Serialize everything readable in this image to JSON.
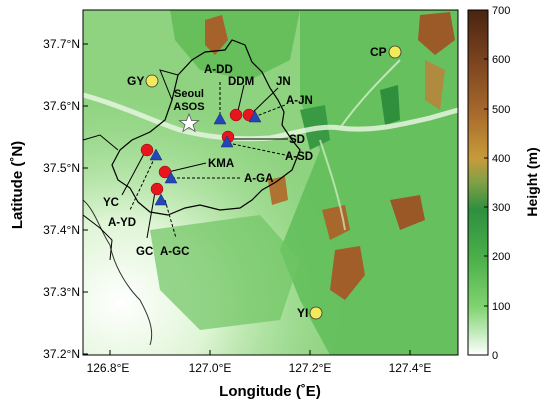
{
  "axes": {
    "xlabel": "Longitude (˚E)",
    "ylabel": "Latitude (˚N)",
    "xticks": [
      "126.8°E",
      "127.0°E",
      "127.2°E",
      "127.4°E"
    ],
    "yticks": [
      "37.7°N",
      "37.6°N",
      "37.5°N",
      "37.4°N",
      "37.3°N",
      "37.2°N"
    ]
  },
  "colorbar": {
    "label": "Height (m)",
    "ticks": [
      "700",
      "600",
      "500",
      "400",
      "300",
      "200",
      "100",
      "0"
    ]
  },
  "stations_yellow": {
    "gy": "GY",
    "cp": "CP",
    "yi": "YI"
  },
  "star": {
    "line1": "Seoul",
    "line2": "ASOS"
  },
  "site_labels": {
    "a_dd": "A-DD",
    "ddm": "DDM",
    "jn": "JN",
    "a_jn": "A-JN",
    "sd": "SD",
    "a_sd": "A-SD",
    "kma": "KMA",
    "a_ga": "A-GA",
    "yc": "YC",
    "a_yd": "A-YD",
    "gc": "GC",
    "a_gc": "A-GC"
  },
  "colors": {
    "red_marker": "#e8141e",
    "blue_marker": "#2346b8",
    "yellow_marker": "#f2ea5a"
  }
}
